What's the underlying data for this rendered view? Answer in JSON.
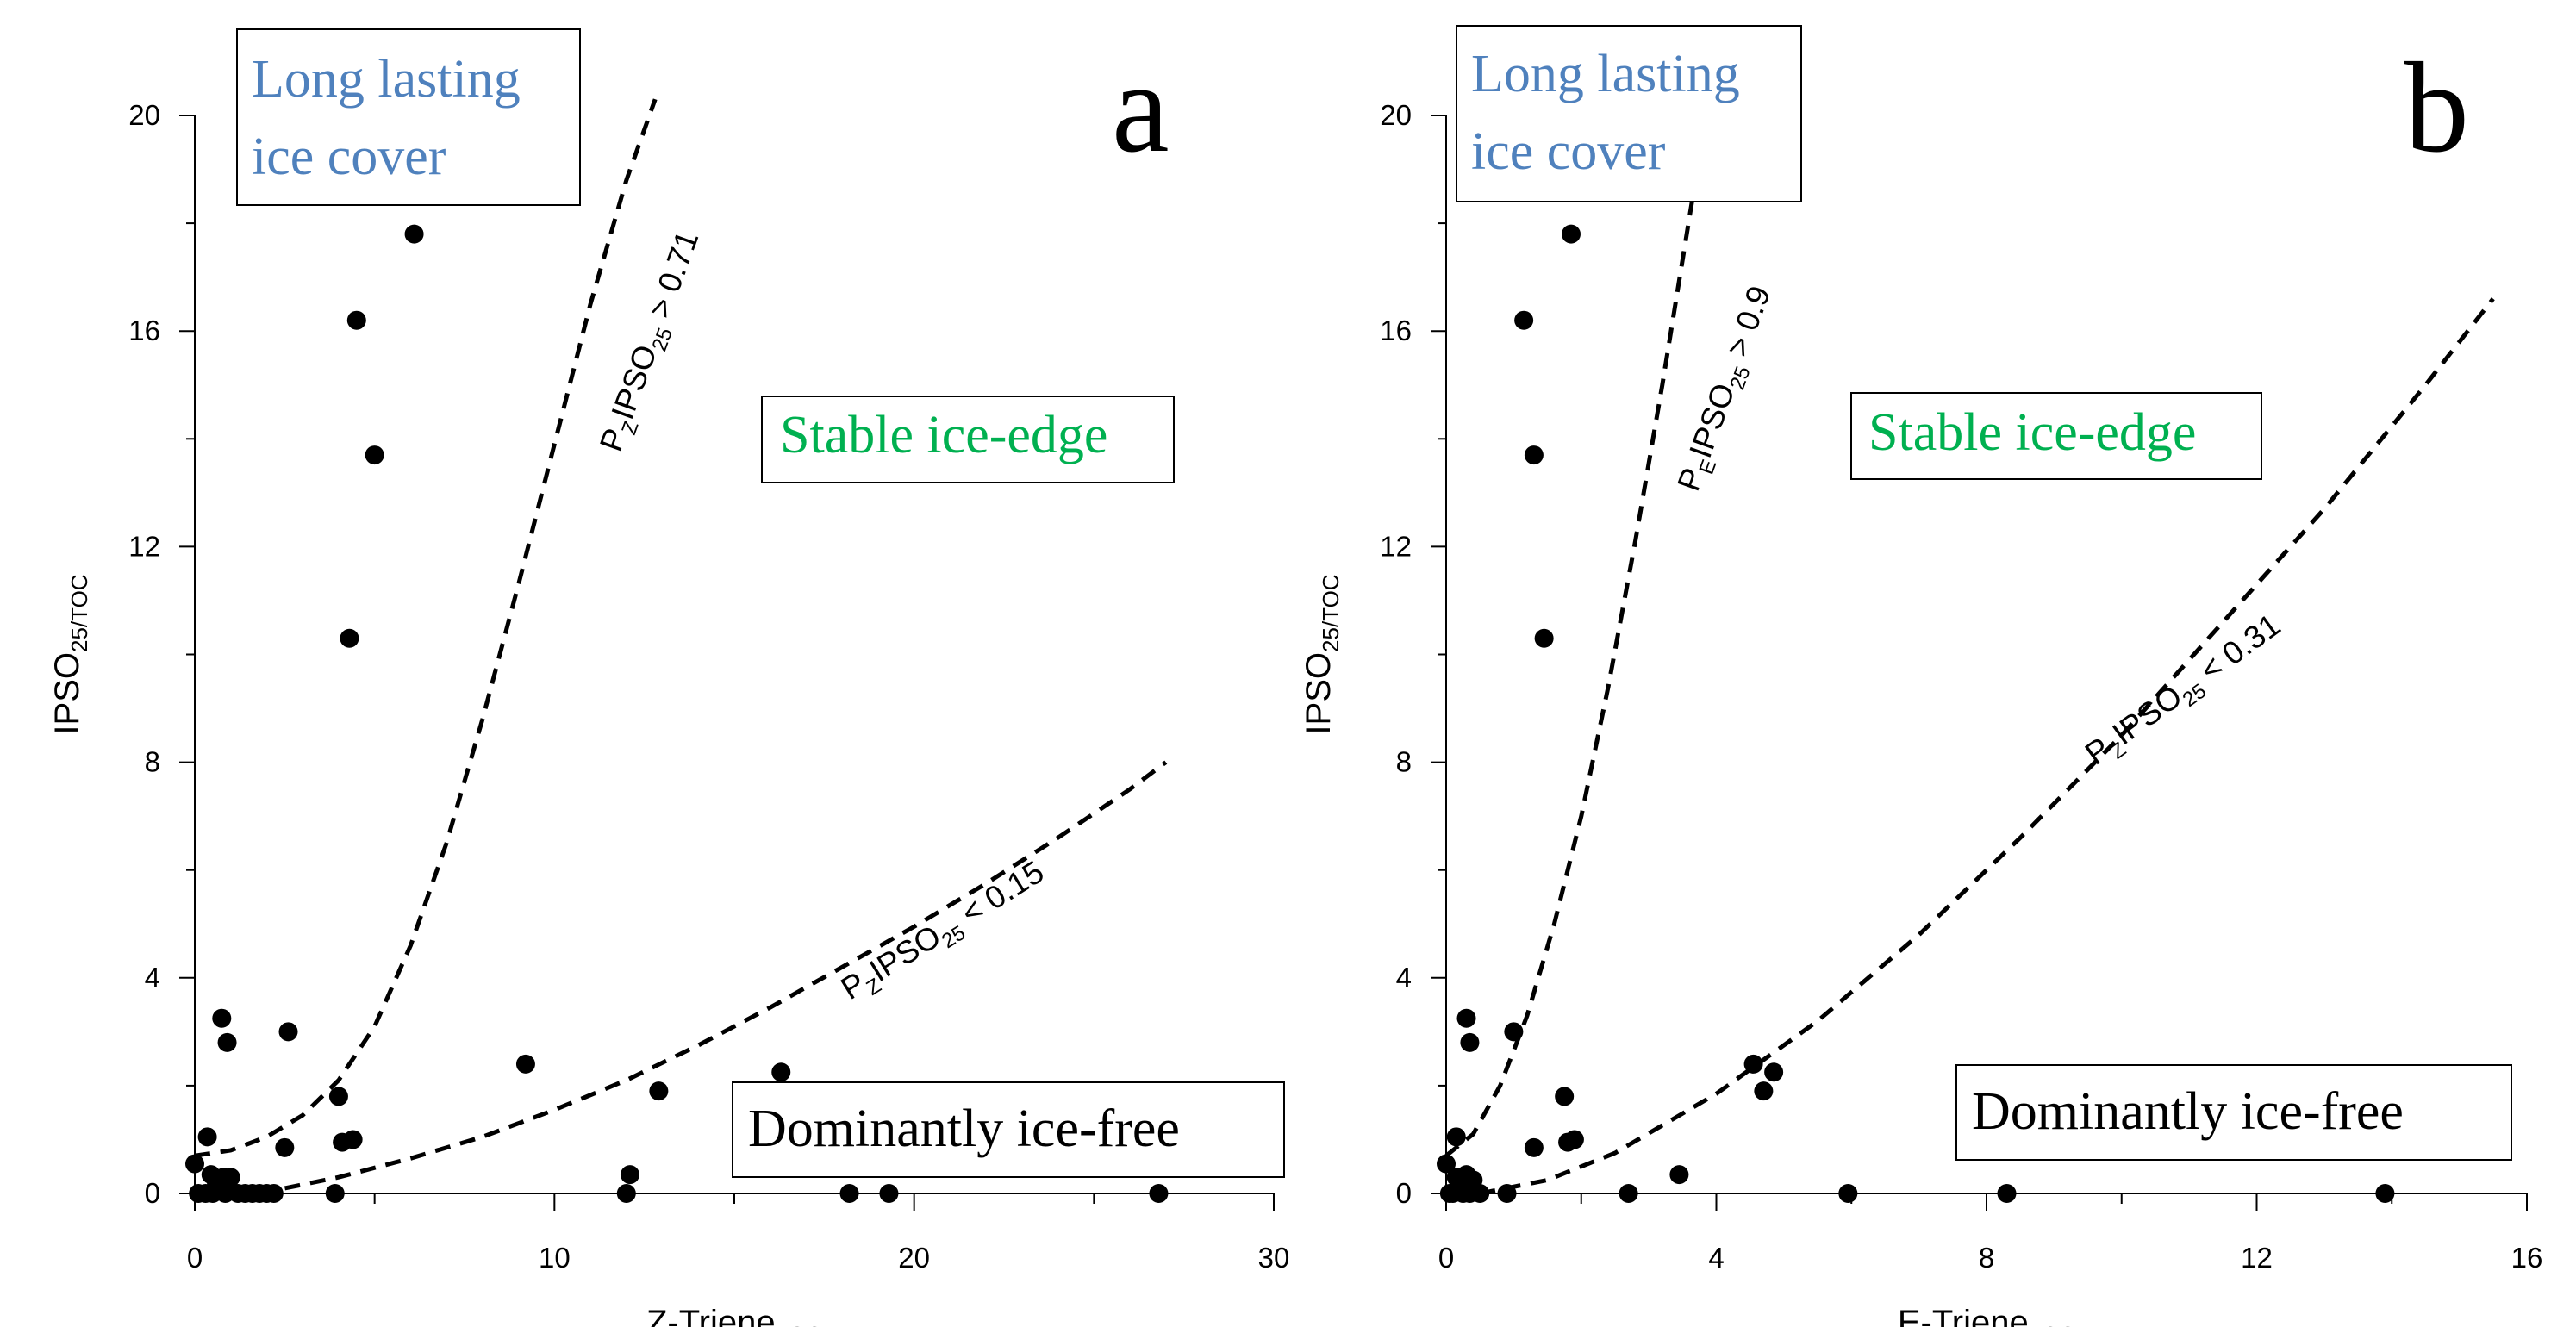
{
  "chart_data": [
    {
      "type": "scatter",
      "panel_label": "a",
      "xlabel": "Z-Triene",
      "xlabel_sub": "TOC",
      "ylabel": "IPSO",
      "ylabel_sub": "25/TOC",
      "xlim": [
        0,
        30
      ],
      "ylim": [
        0,
        20
      ],
      "x_ticks": [
        "0",
        "10",
        "20",
        "30"
      ],
      "y_ticks": [
        "0",
        "4",
        "8",
        "12",
        "16",
        "20"
      ],
      "points": [
        {
          "x": 0.0,
          "y": 0.55
        },
        {
          "x": 0.1,
          "y": 0.0
        },
        {
          "x": 0.3,
          "y": 0.0
        },
        {
          "x": 0.5,
          "y": 0.0
        },
        {
          "x": 0.35,
          "y": 1.05
        },
        {
          "x": 0.45,
          "y": 0.35
        },
        {
          "x": 0.6,
          "y": 0.2
        },
        {
          "x": 0.75,
          "y": 3.25
        },
        {
          "x": 0.8,
          "y": 0.3
        },
        {
          "x": 0.85,
          "y": 0.0
        },
        {
          "x": 0.9,
          "y": 2.8
        },
        {
          "x": 1.0,
          "y": 0.3
        },
        {
          "x": 1.2,
          "y": 0.0
        },
        {
          "x": 1.4,
          "y": 0.0
        },
        {
          "x": 1.6,
          "y": 0.0
        },
        {
          "x": 1.8,
          "y": 0.0
        },
        {
          "x": 2.0,
          "y": 0.0
        },
        {
          "x": 2.2,
          "y": 0.0
        },
        {
          "x": 2.5,
          "y": 0.85
        },
        {
          "x": 2.6,
          "y": 3.0
        },
        {
          "x": 3.9,
          "y": 0.0
        },
        {
          "x": 4.0,
          "y": 1.8
        },
        {
          "x": 4.1,
          "y": 0.95
        },
        {
          "x": 4.3,
          "y": 10.3
        },
        {
          "x": 4.4,
          "y": 1.0
        },
        {
          "x": 4.5,
          "y": 16.2
        },
        {
          "x": 5.0,
          "y": 13.7
        },
        {
          "x": 6.1,
          "y": 17.8
        },
        {
          "x": 9.2,
          "y": 2.4
        },
        {
          "x": 12.0,
          "y": 0.0
        },
        {
          "x": 12.1,
          "y": 0.35
        },
        {
          "x": 12.9,
          "y": 1.9
        },
        {
          "x": 16.3,
          "y": 2.25
        },
        {
          "x": 18.2,
          "y": 0.0
        },
        {
          "x": 19.3,
          "y": 0.0
        },
        {
          "x": 26.8,
          "y": 0.0
        }
      ],
      "curves": [
        {
          "label": "P",
          "label_sub1": "Z",
          "label_mid": "IPSO",
          "label_sub2": "25",
          "label_tail": " > 0.71",
          "points": [
            [
              0.0,
              0.7
            ],
            [
              1.0,
              0.8
            ],
            [
              2.0,
              1.05
            ],
            [
              3.0,
              1.45
            ],
            [
              4.0,
              2.1
            ],
            [
              5.0,
              3.1
            ],
            [
              6.0,
              4.6
            ],
            [
              7.0,
              6.5
            ],
            [
              8.0,
              8.8
            ],
            [
              9.0,
              11.3
            ],
            [
              10.0,
              13.9
            ],
            [
              11.0,
              16.5
            ],
            [
              12.0,
              18.8
            ],
            [
              12.8,
              20.3
            ]
          ]
        },
        {
          "label": "P",
          "label_sub1": "Z",
          "label_mid": "IPSO",
          "label_sub2": "25",
          "label_tail": " < 0.15",
          "points": [
            [
              1.8,
              0.0
            ],
            [
              4.0,
              0.3
            ],
            [
              6.0,
              0.65
            ],
            [
              8.0,
              1.05
            ],
            [
              10.0,
              1.55
            ],
            [
              12.0,
              2.1
            ],
            [
              14.0,
              2.75
            ],
            [
              16.0,
              3.45
            ],
            [
              18.0,
              4.2
            ],
            [
              20.0,
              4.95
            ],
            [
              22.0,
              5.75
            ],
            [
              24.0,
              6.6
            ],
            [
              26.0,
              7.5
            ],
            [
              27.0,
              8.0
            ]
          ]
        }
      ],
      "annotations": {
        "long_lasting": [
          "Long lasting",
          "ice cover"
        ],
        "stable": "Stable ice-edge",
        "ice_free": "Dominantly ice-free"
      },
      "colors": {
        "long_lasting": "#4f81bd",
        "stable": "#00b050",
        "ice_free": "#000000",
        "points": "#000000"
      }
    },
    {
      "type": "scatter",
      "panel_label": "b",
      "xlabel": "E-Triene",
      "xlabel_sub": "TOC",
      "ylabel": "IPSO",
      "ylabel_sub": "25/TOC",
      "xlim": [
        0,
        16
      ],
      "ylim": [
        0,
        20
      ],
      "x_ticks": [
        "0",
        "4",
        "8",
        "12",
        "16"
      ],
      "y_ticks": [
        "0",
        "4",
        "8",
        "12",
        "16",
        "20"
      ],
      "points": [
        {
          "x": 0.0,
          "y": 0.55
        },
        {
          "x": 0.05,
          "y": 0.0
        },
        {
          "x": 0.1,
          "y": 0.0
        },
        {
          "x": 0.15,
          "y": 1.05
        },
        {
          "x": 0.15,
          "y": 0.3
        },
        {
          "x": 0.2,
          "y": 0.15
        },
        {
          "x": 0.25,
          "y": 0.0
        },
        {
          "x": 0.3,
          "y": 0.35
        },
        {
          "x": 0.3,
          "y": 3.25
        },
        {
          "x": 0.35,
          "y": 2.8
        },
        {
          "x": 0.35,
          "y": 0.0
        },
        {
          "x": 0.4,
          "y": 0.25
        },
        {
          "x": 0.5,
          "y": 0.0
        },
        {
          "x": 0.9,
          "y": 0.0
        },
        {
          "x": 1.0,
          "y": 3.0
        },
        {
          "x": 1.15,
          "y": 16.2
        },
        {
          "x": 1.3,
          "y": 13.7
        },
        {
          "x": 1.3,
          "y": 0.85
        },
        {
          "x": 1.45,
          "y": 10.3
        },
        {
          "x": 1.75,
          "y": 1.8
        },
        {
          "x": 1.8,
          "y": 0.95
        },
        {
          "x": 1.85,
          "y": 17.8
        },
        {
          "x": 1.9,
          "y": 1.0
        },
        {
          "x": 2.7,
          "y": 0.0
        },
        {
          "x": 3.45,
          "y": 0.35
        },
        {
          "x": 4.55,
          "y": 2.4
        },
        {
          "x": 4.7,
          "y": 1.9
        },
        {
          "x": 4.85,
          "y": 2.25
        },
        {
          "x": 5.95,
          "y": 0.0
        },
        {
          "x": 8.3,
          "y": 0.0
        },
        {
          "x": 13.9,
          "y": 0.0
        }
      ],
      "curves": [
        {
          "label": "P",
          "label_sub1": "E",
          "label_mid": "IPSO",
          "label_sub2": "25",
          "label_tail": " > 0.9",
          "points": [
            [
              0.0,
              0.7
            ],
            [
              0.4,
              1.1
            ],
            [
              0.8,
              2.0
            ],
            [
              1.2,
              3.3
            ],
            [
              1.6,
              5.0
            ],
            [
              2.0,
              7.0
            ],
            [
              2.4,
              9.4
            ],
            [
              2.8,
              12.1
            ],
            [
              3.2,
              15.0
            ],
            [
              3.6,
              18.1
            ],
            [
              3.9,
              20.4
            ]
          ]
        },
        {
          "label": "P",
          "label_sub1": "Z",
          "label_mid": "IPSO",
          "label_sub2": "25",
          "label_tail": " < 0.31",
          "points": [
            [
              0.5,
              0.0
            ],
            [
              1.5,
              0.25
            ],
            [
              2.5,
              0.75
            ],
            [
              4.0,
              1.85
            ],
            [
              5.5,
              3.2
            ],
            [
              7.0,
              4.8
            ],
            [
              8.5,
              6.6
            ],
            [
              10.0,
              8.5
            ],
            [
              11.5,
              10.6
            ],
            [
              13.0,
              12.7
            ],
            [
              14.5,
              15.0
            ],
            [
              15.5,
              16.6
            ]
          ]
        }
      ],
      "annotations": {
        "long_lasting": [
          "Long lasting",
          "ice cover"
        ],
        "stable": "Stable ice-edge",
        "ice_free": "Dominantly ice-free"
      },
      "colors": {
        "long_lasting": "#4f81bd",
        "stable": "#00b050",
        "ice_free": "#000000",
        "points": "#000000"
      }
    }
  ]
}
